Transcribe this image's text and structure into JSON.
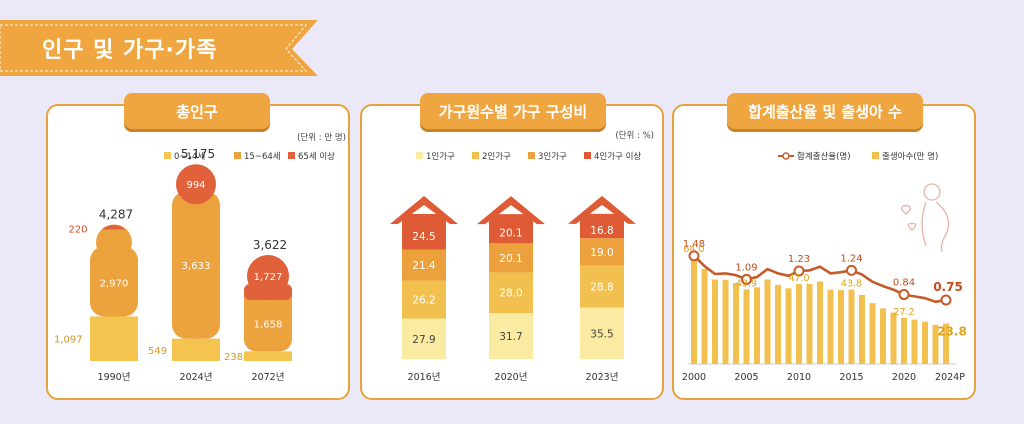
{
  "section_title": "인구 및 가구·가족",
  "colors": {
    "banner": "#f0a640",
    "c1": "#f5c44e",
    "c2": "#eca33e",
    "c3": "#e0613a",
    "h1": "#faeaa2",
    "h2": "#f2c04f",
    "h3": "#eca13c",
    "h4": "#df5b36",
    "line": "#c65b2a",
    "bar": "#f2c04f"
  },
  "chart_data": [
    {
      "type": "bar",
      "title": "총인구",
      "unit_note": "(단위 : 만 명)",
      "legend": [
        "0~14세",
        "15~64세",
        "65세 이상"
      ],
      "categories": [
        "1990년",
        "2024년",
        "2072년"
      ],
      "series": [
        {
          "name": "0~14세",
          "values": [
            1097,
            549,
            238
          ],
          "labels": [
            "1,097",
            "549",
            "238"
          ]
        },
        {
          "name": "15~64세",
          "values": [
            2970,
            3633,
            1658
          ],
          "labels": [
            "2,970",
            "3,633",
            "1,658"
          ]
        },
        {
          "name": "65세 이상",
          "values": [
            220,
            994,
            1727
          ],
          "labels": [
            "220",
            "994",
            "1,727"
          ]
        }
      ],
      "totals": [
        "4,287",
        "5,175",
        "3,622"
      ]
    },
    {
      "type": "bar",
      "title": "가구원수별 가구 구성비",
      "unit_note": "(단위 : %)",
      "legend": [
        "1인가구",
        "2인가구",
        "3인가구",
        "4인가구 이상"
      ],
      "categories": [
        "2016년",
        "2020년",
        "2023년"
      ],
      "series": [
        {
          "name": "1인가구",
          "values": [
            27.9,
            31.7,
            35.5
          ],
          "labels": [
            "27.9",
            "31.7",
            "35.5"
          ]
        },
        {
          "name": "2인가구",
          "values": [
            26.2,
            28.0,
            28.8
          ],
          "labels": [
            "26.2",
            "28.0",
            "28.8"
          ]
        },
        {
          "name": "3인가구",
          "values": [
            21.4,
            20.1,
            19.0
          ],
          "labels": [
            "21.4",
            "20.1",
            "19.0"
          ]
        },
        {
          "name": "4인가구 이상",
          "values": [
            24.5,
            20.1,
            16.8
          ],
          "labels": [
            "24.5",
            "20.1",
            "16.8"
          ]
        }
      ]
    },
    {
      "type": "bar+line",
      "title": "합계출산율 및 출생아 수",
      "legend": [
        "합계출산율(명)",
        "출생아수(만 명)"
      ],
      "x": [
        2000,
        2001,
        2002,
        2003,
        2004,
        2005,
        2006,
        2007,
        2008,
        2009,
        2010,
        2011,
        2012,
        2013,
        2014,
        2015,
        2016,
        2017,
        2018,
        2019,
        2020,
        2021,
        2022,
        2023,
        2024
      ],
      "x_ticks": [
        "2000",
        "2005",
        "2010",
        "2015",
        "2020",
        "2024P"
      ],
      "births": [
        64.0,
        56.0,
        49.7,
        49.5,
        47.7,
        43.9,
        45.1,
        49.7,
        46.6,
        44.5,
        47.0,
        47.1,
        48.5,
        43.7,
        43.5,
        43.8,
        40.6,
        35.8,
        32.7,
        30.3,
        27.2,
        26.1,
        24.9,
        23.0,
        23.8
      ],
      "tfr": [
        1.48,
        1.31,
        1.18,
        1.19,
        1.16,
        1.09,
        1.13,
        1.26,
        1.19,
        1.15,
        1.23,
        1.24,
        1.3,
        1.19,
        1.21,
        1.24,
        1.17,
        1.05,
        0.98,
        0.92,
        0.84,
        0.81,
        0.78,
        0.72,
        0.75
      ],
      "birth_labels": {
        "2000": "64.0",
        "2005": "43.9",
        "2010": "47.0",
        "2015": "43.8",
        "2020": "27.2",
        "2024": "23.8"
      },
      "tfr_labels": {
        "2000": "1.48",
        "2005": "1.09",
        "2010": "1.23",
        "2015": "1.24",
        "2020": "0.84",
        "2024": "0.75"
      }
    }
  ]
}
